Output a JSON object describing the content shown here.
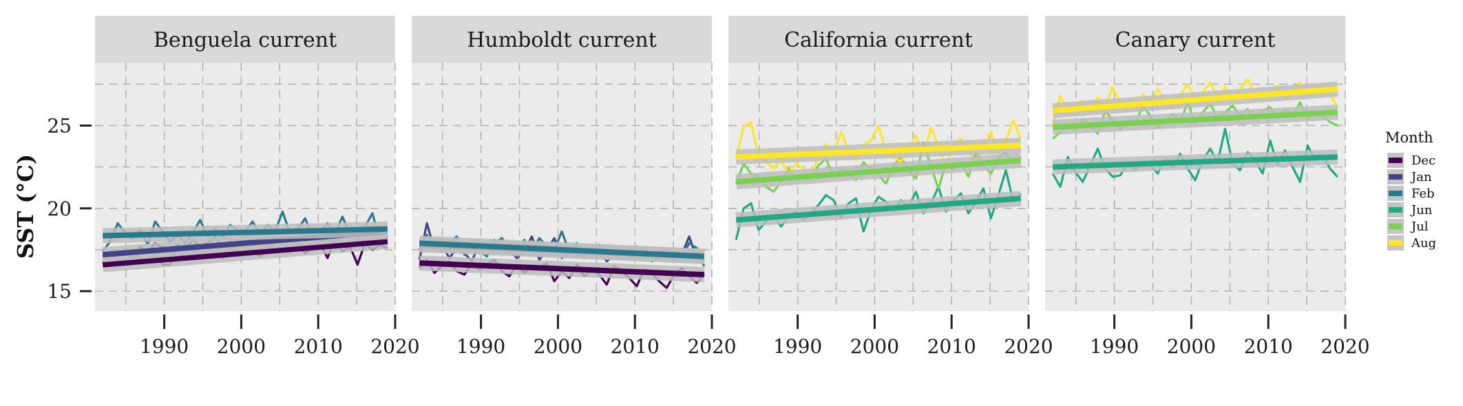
{
  "chart_data": {
    "type": "line",
    "ylabel": "SST (°C)",
    "xlabel": "",
    "xlim": [
      1981,
      2020
    ],
    "ylim": [
      13.8,
      28.8
    ],
    "x_ticks": [
      1990,
      2000,
      2010,
      2020
    ],
    "y_ticks": [
      15,
      20,
      25
    ],
    "grid": true,
    "legend": {
      "title": "Month",
      "position": "right",
      "entries": [
        {
          "label": "Dec",
          "color": "#440154"
        },
        {
          "label": "Jan",
          "color": "#414487"
        },
        {
          "label": "Feb",
          "color": "#2a788e"
        },
        {
          "label": "Jun",
          "color": "#22a884"
        },
        {
          "label": "Jul",
          "color": "#7ad151"
        },
        {
          "label": "Aug",
          "color": "#fde725"
        }
      ]
    },
    "panels": [
      {
        "title": "Benguela current",
        "series": [
          {
            "name": "Dec",
            "color": "#440154",
            "trend": [
              16.6,
              18.0
            ],
            "values": [
              16.6,
              16.7,
              16.9,
              16.8,
              17.3,
              17.0,
              16.8,
              17.2,
              16.6,
              16.6,
              17.6,
              17.0,
              17.4,
              17.2,
              17.0,
              17.6,
              17.0,
              17.8,
              17.3,
              17.2,
              17.5,
              17.1,
              17.8,
              17.4,
              18.0,
              17.5,
              17.7,
              17.3,
              17.6,
              17.9,
              17.0,
              18.2,
              17.4,
              17.7,
              16.6,
              17.9,
              17.5,
              17.8,
              17.6
            ]
          },
          {
            "name": "Jan",
            "color": "#414487",
            "trend": [
              17.2,
              18.6
            ],
            "values": [
              17.1,
              17.4,
              16.8,
              17.5,
              17.0,
              17.7,
              17.3,
              17.9,
              17.6,
              17.2,
              17.8,
              17.5,
              18.1,
              17.7,
              17.9,
              18.3,
              17.6,
              18.0,
              17.8,
              18.4,
              17.9,
              18.2,
              17.7,
              18.5,
              18.0,
              18.3,
              17.9,
              18.6,
              18.2,
              18.4,
              18.0,
              18.7,
              18.3,
              18.5,
              17.9,
              18.8,
              18.4,
              18.6,
              18.2
            ]
          },
          {
            "name": "Feb",
            "color": "#2a788e",
            "trend": [
              18.35,
              18.75
            ],
            "values": [
              17.4,
              18.0,
              19.1,
              18.5,
              18.2,
              18.7,
              17.8,
              19.2,
              18.6,
              18.0,
              18.4,
              17.9,
              18.5,
              19.3,
              18.3,
              18.8,
              18.2,
              19.0,
              18.7,
              18.6,
              19.2,
              18.4,
              19.0,
              18.6,
              19.8,
              18.5,
              18.7,
              19.4,
              18.3,
              18.6,
              19.1,
              18.5,
              19.5,
              18.4,
              18.2,
              18.9,
              19.7,
              18.0,
              18.4
            ]
          }
        ]
      },
      {
        "title": "Humboldt current",
        "series": [
          {
            "name": "Dec",
            "color": "#440154",
            "trend": [
              16.7,
              16.0
            ],
            "values": [
              16.4,
              16.9,
              16.1,
              16.5,
              16.8,
              16.2,
              16.0,
              16.7,
              16.3,
              16.6,
              16.9,
              16.2,
              15.9,
              16.6,
              16.1,
              16.5,
              16.4,
              16.7,
              15.6,
              16.2,
              15.8,
              16.6,
              15.9,
              16.3,
              16.0,
              15.4,
              16.5,
              16.2,
              15.8,
              15.3,
              16.3,
              16.1,
              15.6,
              15.2,
              16.0,
              16.4,
              15.9,
              15.5,
              16.0
            ]
          },
          {
            "name": "Jan",
            "color": "#414487",
            "trend": [
              17.8,
              17.1
            ],
            "values": [
              16.9,
              19.1,
              17.5,
              17.8,
              17.0,
              17.6,
              17.3,
              16.8,
              17.9,
              17.5,
              18.1,
              17.7,
              17.5,
              17.0,
              17.4,
              18.3,
              16.9,
              17.5,
              18.2,
              17.0,
              17.3,
              17.8,
              17.0,
              17.2,
              17.5,
              16.8,
              17.2,
              17.4,
              16.9,
              17.1,
              17.6,
              16.8,
              17.0,
              17.3,
              16.9,
              17.2,
              18.3,
              17.0,
              16.8
            ]
          },
          {
            "name": "Feb",
            "color": "#2a788e",
            "trend": [
              17.9,
              17.1
            ],
            "values": [
              17.5,
              18.4,
              17.6,
              17.4,
              18.0,
              18.3,
              17.2,
              17.8,
              17.4,
              17.1,
              17.9,
              18.2,
              17.6,
              17.4,
              18.1,
              17.3,
              18.2,
              17.7,
              17.5,
              18.6,
              17.4,
              17.9,
              17.2,
              17.6,
              17.8,
              17.3,
              17.5,
              17.1,
              17.4,
              17.7,
              17.0,
              17.4,
              17.2,
              17.6,
              17.3,
              17.0,
              17.9,
              17.6,
              16.5
            ]
          }
        ]
      },
      {
        "title": "California current",
        "series": [
          {
            "name": "Jun",
            "color": "#22a884",
            "trend": [
              19.3,
              20.6
            ],
            "values": [
              18.1,
              20.0,
              20.3,
              18.7,
              19.2,
              19.6,
              18.9,
              19.5,
              19.8,
              19.3,
              19.7,
              20.2,
              20.8,
              20.5,
              19.4,
              20.3,
              20.6,
              18.6,
              19.9,
              20.7,
              20.4,
              19.8,
              20.5,
              20.1,
              21.0,
              19.7,
              20.3,
              21.3,
              19.8,
              20.5,
              20.9,
              19.7,
              20.4,
              21.2,
              19.4,
              20.8,
              22.3,
              20.4,
              20.9
            ]
          },
          {
            "name": "Jul",
            "color": "#7ad151",
            "trend": [
              21.6,
              22.9
            ],
            "values": [
              21.5,
              22.7,
              22.1,
              21.9,
              21.3,
              21.0,
              21.6,
              22.4,
              21.8,
              22.0,
              21.7,
              22.6,
              23.0,
              21.9,
              22.4,
              22.2,
              21.7,
              22.8,
              22.3,
              22.0,
              21.5,
              22.6,
              23.1,
              22.3,
              21.8,
              24.0,
              22.5,
              21.2,
              22.7,
              22.3,
              22.8,
              21.9,
              23.4,
              22.6,
              22.1,
              23.0,
              23.4,
              22.7,
              23.1
            ]
          },
          {
            "name": "Aug",
            "color": "#fde725",
            "trend": [
              23.1,
              23.8
            ],
            "values": [
              23.0,
              24.9,
              25.2,
              23.1,
              22.8,
              22.4,
              22.9,
              22.1,
              22.7,
              22.4,
              22.0,
              23.1,
              23.9,
              23.3,
              24.6,
              23.5,
              22.9,
              23.8,
              24.1,
              25.0,
              23.4,
              23.1,
              22.8,
              23.6,
              24.4,
              23.2,
              24.9,
              23.7,
              22.5,
              23.9,
              24.2,
              23.5,
              22.6,
              23.8,
              24.6,
              23.3,
              24.1,
              25.3,
              24.2
            ]
          }
        ]
      },
      {
        "title": "Canary current",
        "series": [
          {
            "name": "Jun",
            "color": "#22a884",
            "trend": [
              22.5,
              23.1
            ],
            "values": [
              22.1,
              21.3,
              23.1,
              22.2,
              21.6,
              22.6,
              23.6,
              22.4,
              21.9,
              22.0,
              22.7,
              22.3,
              22.8,
              22.6,
              22.1,
              23.0,
              22.5,
              23.3,
              22.4,
              21.7,
              22.9,
              23.6,
              22.8,
              24.8,
              22.7,
              22.3,
              23.4,
              22.9,
              22.1,
              24.1,
              22.6,
              23.5,
              22.5,
              21.6,
              23.8,
              22.9,
              23.2,
              22.4,
              21.9
            ]
          },
          {
            "name": "Jul",
            "color": "#7ad151",
            "trend": [
              24.9,
              25.8
            ],
            "values": [
              24.2,
              24.6,
              25.0,
              24.7,
              25.4,
              25.0,
              24.5,
              25.9,
              25.3,
              24.7,
              25.3,
              25.1,
              26.2,
              25.6,
              24.9,
              25.3,
              25.7,
              25.2,
              26.4,
              25.1,
              25.8,
              26.3,
              25.5,
              25.8,
              26.2,
              25.6,
              26.0,
              25.4,
              25.9,
              26.1,
              25.4,
              26.0,
              25.6,
              26.4,
              25.3,
              25.9,
              25.6,
              25.2,
              25.0
            ]
          },
          {
            "name": "Aug",
            "color": "#fde725",
            "trend": [
              25.9,
              27.2
            ],
            "values": [
              25.0,
              26.8,
              26.0,
              26.3,
              26.5,
              25.8,
              26.7,
              26.2,
              27.3,
              26.4,
              25.9,
              26.1,
              26.9,
              26.4,
              27.2,
              26.5,
              26.0,
              26.8,
              27.5,
              26.6,
              27.0,
              27.6,
              26.7,
              27.3,
              26.5,
              27.2,
              27.8,
              26.9,
              26.4,
              27.1,
              27.4,
              26.6,
              27.0,
              27.6,
              26.8,
              27.3,
              27.5,
              26.9,
              26.1
            ]
          }
        ]
      }
    ]
  }
}
